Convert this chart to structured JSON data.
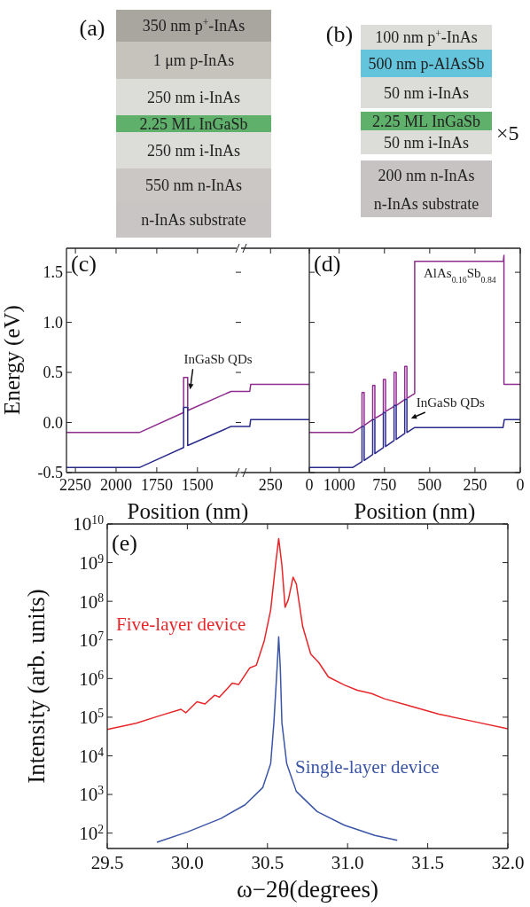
{
  "chart_data": [
    {
      "type": "other",
      "title": "(a)",
      "categories": [
        "350 nm p$^{+}$-InAs",
        "1 μm p-InAs",
        "250 nm i-InAs",
        "2.25 ML InGaSb",
        "250 nm i-InAs",
        "550 nm n-InAs",
        "n-InAs substrate"
      ],
      "colors": [
        "#a9a59f",
        "#c6c3bd",
        "#dcdcd9",
        "#5fb06b",
        "#dcdcd9",
        "#cbc7c5",
        "#c9c5c5"
      ]
    },
    {
      "type": "other",
      "title": "(b)",
      "categories": [
        "100 nm p$^{+}$-InAs",
        "500 nm p-AlAsSb",
        "50 nm i-InAs",
        "2.25 ML InGaSb",
        "50 nm i-InAs",
        "200 nm n-InAs",
        "n-InAs substrate"
      ],
      "colors": [
        "#dcdcd8",
        "#63c4dc",
        "#dcdcd8",
        "#5fb06b",
        "#dcdcd8",
        "#c7c3c3",
        "#c7c3c3"
      ],
      "annotations": [
        "×5"
      ]
    },
    {
      "type": "line",
      "title": "(c)",
      "xlabel": "Position (nm)",
      "ylabel": "Energy (eV)",
      "xlim": [
        2305,
        1232
      ],
      "ylim": [
        -0.5,
        1.74
      ],
      "xticks": [
        2250,
        2000,
        1750,
        1500
      ],
      "yticks": [
        -0.5,
        {
          "value": 0,
          "label": "0.0"
        },
        0.5,
        {
          "value": 1,
          "label": "1.0"
        },
        1.5
      ],
      "series": [
        {
          "color": "#8e2d8e",
          "x": [
            2305,
            1857,
            1585,
            1585,
            1560,
            1560,
            1294,
            1232
          ],
          "values": [
            -0.1,
            -0.1,
            0.1,
            0.45,
            0.45,
            0.12,
            0.31,
            0.31
          ]
        },
        {
          "color": "#2b2b8c",
          "x": [
            2305,
            1857,
            1585,
            1585,
            1560,
            1560,
            1294,
            1232
          ],
          "values": [
            -0.45,
            -0.45,
            -0.25,
            0.15,
            0.15,
            -0.23,
            -0.04,
            -0.04
          ]
        }
      ],
      "annotations": [
        {
          "text": "InGaSb QDs",
          "x": 1545,
          "y": 0.33
        }
      ]
    },
    {
      "type": "line",
      "xlim": [
        440,
        0
      ],
      "ylim": [
        -0.5,
        1.74
      ],
      "xticks": [
        250,
        0
      ],
      "tick_labels": "x",
      "series": [
        {
          "color": "#8e2d8e",
          "x": [
            440,
            384,
            378,
            0
          ],
          "values": [
            0.31,
            0.31,
            0.38,
            0.38
          ]
        },
        {
          "color": "#2b2b8c",
          "x": [
            440,
            384,
            378,
            0
          ],
          "values": [
            -0.04,
            -0.04,
            0.03,
            0.03
          ]
        }
      ]
    },
    {
      "type": "line",
      "title": "(d)",
      "xlabel": "Position (nm)",
      "xlim": [
        1165,
        0
      ],
      "ylim": [
        -0.5,
        1.74
      ],
      "xticks": [
        1000,
        750,
        500,
        250,
        0
      ],
      "yticks": [
        -0.5,
        0,
        0.5,
        1,
        1.5
      ],
      "tick_labels": "x",
      "series": [
        {
          "color": "#8e2d8e",
          "x": [
            1165,
            926,
            874,
            874,
            862,
            862,
            815,
            815,
            803,
            803,
            756,
            756,
            744,
            744,
            697,
            697,
            685,
            685,
            638,
            638,
            626,
            626,
            583,
            583,
            93,
            90,
            90,
            0
          ],
          "values": [
            -0.1,
            -0.1,
            -0.04,
            0.3,
            0.3,
            -0.03,
            0.03,
            0.37,
            0.37,
            0.04,
            0.09,
            0.43,
            0.43,
            0.11,
            0.16,
            0.5,
            0.5,
            0.17,
            0.23,
            0.56,
            0.56,
            0.24,
            0.29,
            1.61,
            1.61,
            1.67,
            0.38,
            0.38
          ]
        },
        {
          "color": "#2b2b8c",
          "x": [
            1165,
            926,
            874,
            874,
            862,
            862,
            815,
            815,
            803,
            803,
            756,
            756,
            744,
            744,
            697,
            697,
            685,
            685,
            638,
            638,
            626,
            626,
            583,
            95,
            88,
            0
          ],
          "values": [
            -0.45,
            -0.45,
            -0.39,
            -0.04,
            -0.04,
            -0.38,
            -0.32,
            0.03,
            0.03,
            -0.31,
            -0.25,
            0.1,
            0.1,
            -0.24,
            -0.18,
            0.17,
            0.17,
            -0.17,
            -0.11,
            0.23,
            0.23,
            -0.1,
            -0.05,
            -0.05,
            0.03,
            0.03
          ]
        }
      ],
      "annotations": [
        {
          "text": "InGaSb QDs",
          "x": 603,
          "y": 0.04
        },
        "AlAs$_{0.16}$Sb$_{0.84}$"
      ]
    },
    {
      "type": "line",
      "title": "(e)",
      "xlabel": "ω−2θ(degrees)",
      "ylabel": "Intensity (arb. units)",
      "log": "y",
      "xlim": [
        29.5,
        32.0
      ],
      "ylim": [
        40,
        10000000000
      ],
      "xticks": [
        29.5,
        {
          "value": 30,
          "label": "30.0"
        },
        30.5,
        {
          "value": 31,
          "label": "31.0"
        },
        31.5,
        {
          "value": 32,
          "label": "32.0"
        }
      ],
      "yticks": [
        {
          "value": 100,
          "label": "10$^{2}$"
        },
        {
          "value": 1000,
          "label": "10$^{3}$"
        },
        {
          "value": 10000,
          "label": "10$^{4}$"
        },
        {
          "value": 100000,
          "label": "10$^{5}$"
        },
        {
          "value": 1000000,
          "label": "10$^{6}$"
        },
        {
          "value": 10000000,
          "label": "10$^{7}$"
        },
        {
          "value": 100000000,
          "label": "10$^{8}$"
        },
        {
          "value": 1000000000,
          "label": "10$^{9}$"
        },
        {
          "value": 10000000000,
          "label": "10$^{10}$"
        }
      ],
      "series": [
        {
          "name": "Five-layer device",
          "color": "#e8262a",
          "x": [
            29.5,
            29.68,
            29.83,
            29.96,
            29.99,
            30.06,
            30.11,
            30.17,
            30.2,
            30.28,
            30.32,
            30.39,
            30.43,
            30.48,
            30.52,
            30.55,
            30.57,
            30.59,
            30.61,
            30.63,
            30.66,
            30.68,
            30.72,
            30.77,
            30.82,
            30.88,
            30.98,
            31.06,
            31.15,
            31.23,
            31.38,
            31.57,
            31.77,
            32.0
          ],
          "values": [
            48000,
            70000,
            110000,
            160000,
            130000,
            250000,
            220000,
            370000,
            330000,
            760000,
            700000,
            1900000,
            2200000,
            9500000,
            60000000,
            850000000,
            4200000000,
            850000000,
            70000000,
            110000000,
            420000000,
            280000000,
            22000000,
            4300000,
            2600000,
            1100000,
            680000,
            500000,
            410000,
            300000,
            200000,
            120000,
            80000,
            50000
          ]
        },
        {
          "name": "Single-layer device",
          "color": "#3a55a6",
          "x": [
            29.81,
            30.0,
            30.21,
            30.36,
            30.47,
            30.52,
            30.54,
            30.56,
            30.57,
            30.58,
            30.59,
            30.62,
            30.68,
            30.81,
            30.98,
            31.17,
            31.31
          ],
          "values": [
            58,
            107,
            240,
            540,
            1500,
            6300,
            72000,
            1900000,
            12000000,
            1900000,
            72000,
            6300,
            1200,
            360,
            160,
            87,
            65
          ]
        }
      ]
    }
  ]
}
